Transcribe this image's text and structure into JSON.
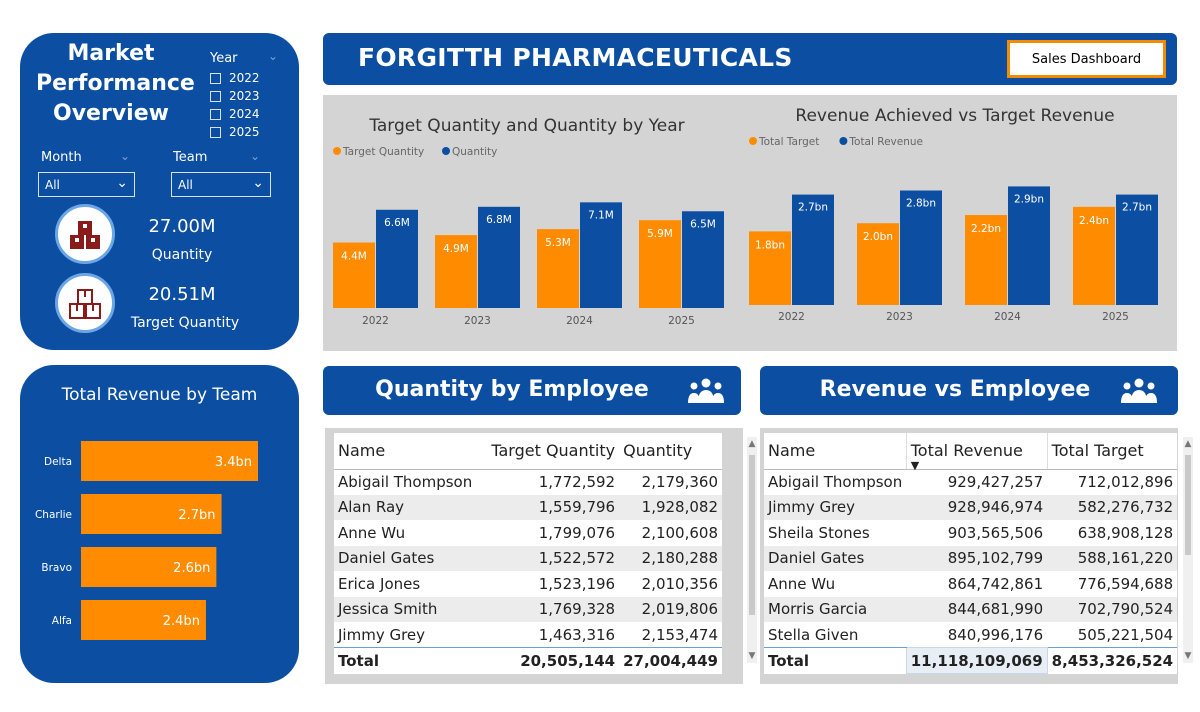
{
  "filters": {
    "title": "Market Performance Overview",
    "year_label": "Year",
    "years": [
      "2022",
      "2023",
      "2024",
      "2025"
    ],
    "month_label": "Month",
    "month_value": "All",
    "team_label": "Team",
    "team_value": "All"
  },
  "kpis": {
    "quantity_value": "27.00M",
    "quantity_label": "Quantity",
    "target_value": "20.51M",
    "target_label": "Target Quantity"
  },
  "header": {
    "title": "FORGITTH PHARMACEUTICALS",
    "button_label": "Sales Dashboard"
  },
  "colors": {
    "brand_blue": "#0b4ea2",
    "orange": "#ff8c00",
    "chart_bg": "#d4d4d4"
  },
  "sections": {
    "quantity_title": "Quantity by Employee",
    "revenue_title": "Revenue vs Employee"
  },
  "quantity_table": {
    "columns": [
      "Name",
      "Target Quantity",
      "Quantity"
    ],
    "rows": [
      [
        "Abigail Thompson",
        "1,772,592",
        "2,179,360"
      ],
      [
        "Alan Ray",
        "1,559,796",
        "1,928,082"
      ],
      [
        "Anne Wu",
        "1,799,076",
        "2,100,608"
      ],
      [
        "Daniel Gates",
        "1,522,572",
        "2,180,288"
      ],
      [
        "Erica Jones",
        "1,523,196",
        "2,010,356"
      ],
      [
        "Jessica Smith",
        "1,769,328",
        "2,019,806"
      ],
      [
        "Jimmy Grey",
        "1,463,316",
        "2,153,474"
      ]
    ],
    "total": [
      "Total",
      "20,505,144",
      "27,004,449"
    ]
  },
  "revenue_table": {
    "columns": [
      "Name",
      "Total Revenue",
      "Total Target"
    ],
    "rows": [
      [
        "Abigail Thompson",
        "929,427,257",
        "712,012,896"
      ],
      [
        "Jimmy Grey",
        "928,946,974",
        "582,276,732"
      ],
      [
        "Sheila Stones",
        "903,565,506",
        "638,908,128"
      ],
      [
        "Daniel Gates",
        "895,102,799",
        "588,161,220"
      ],
      [
        "Anne Wu",
        "864,742,861",
        "776,594,688"
      ],
      [
        "Morris Garcia",
        "844,681,990",
        "702,790,524"
      ],
      [
        "Stella Given",
        "840,996,176",
        "505,221,504"
      ]
    ],
    "total": [
      "Total",
      "11,118,109,069",
      "8,453,326,524"
    ]
  },
  "chart_data": [
    {
      "type": "bar",
      "title": "Target Quantity and Quantity by Year",
      "categories": [
        "2022",
        "2023",
        "2024",
        "2025"
      ],
      "series": [
        {
          "name": "Target Quantity",
          "color": "#ff8c00",
          "values": [
            4.4,
            4.9,
            5.3,
            5.9
          ],
          "labels": [
            "4.4M",
            "4.9M",
            "5.3M",
            "5.9M"
          ]
        },
        {
          "name": "Quantity",
          "color": "#0b4ea2",
          "values": [
            6.6,
            6.8,
            7.1,
            6.5
          ],
          "labels": [
            "6.6M",
            "6.8M",
            "7.1M",
            "6.5M"
          ]
        }
      ],
      "ylim": [
        0,
        8.4
      ],
      "legend": "top-left"
    },
    {
      "type": "bar",
      "title": "Revenue Achieved vs Target Revenue",
      "categories": [
        "2022",
        "2023",
        "2024",
        "2025"
      ],
      "series": [
        {
          "name": "Total Target",
          "color": "#ff8c00",
          "values": [
            1.8,
            2.0,
            2.2,
            2.4
          ],
          "labels": [
            "1.8bn",
            "2.0bn",
            "2.2bn",
            "2.4bn"
          ]
        },
        {
          "name": "Total Revenue",
          "color": "#0b4ea2",
          "values": [
            2.7,
            2.8,
            2.9,
            2.7
          ],
          "labels": [
            "2.7bn",
            "2.8bn",
            "2.9bn",
            "2.7bn"
          ]
        }
      ],
      "ylim": [
        0,
        3.35
      ],
      "legend": "top-left"
    },
    {
      "type": "bar",
      "orientation": "horizontal",
      "title": "Total Revenue by Team",
      "categories": [
        "Delta",
        "Charlie",
        "Bravo",
        "Alfa"
      ],
      "values": [
        3.4,
        2.7,
        2.6,
        2.4
      ],
      "labels": [
        "3.4bn",
        "2.7bn",
        "2.6bn",
        "2.4bn"
      ],
      "color": "#ff8c00",
      "xlim": [
        0,
        3.4
      ]
    }
  ]
}
